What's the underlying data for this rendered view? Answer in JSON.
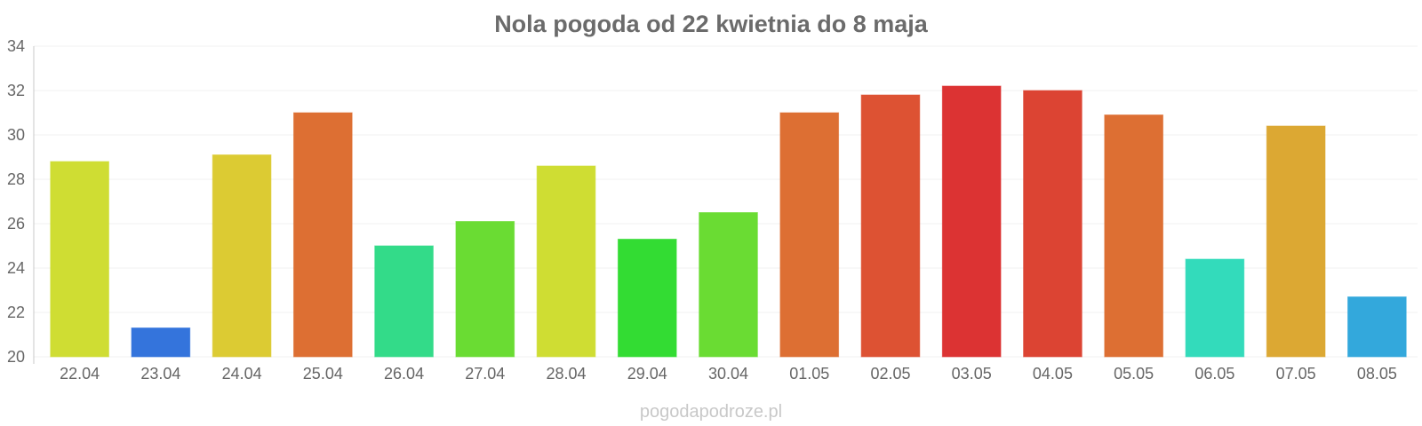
{
  "chart_data": {
    "type": "bar",
    "title": "Nola pogoda od 22 kwietnia do 8 maja",
    "xlabel": "",
    "ylabel": "",
    "ylim": [
      20,
      34
    ],
    "yticks": [
      20,
      22,
      24,
      26,
      28,
      30,
      32,
      34
    ],
    "grid": true,
    "categories": [
      "22.04",
      "23.04",
      "24.04",
      "25.04",
      "26.04",
      "27.04",
      "28.04",
      "29.04",
      "30.04",
      "01.05",
      "02.05",
      "03.05",
      "04.05",
      "05.05",
      "06.05",
      "07.05",
      "08.05"
    ],
    "values": [
      28.8,
      21.3,
      29.1,
      31.0,
      25.0,
      26.1,
      28.6,
      25.3,
      26.5,
      31.0,
      31.8,
      32.2,
      32.0,
      30.9,
      24.4,
      30.4,
      22.7
    ],
    "colors": [
      "#cfdd33",
      "#3474dc",
      "#dccb33",
      "#dd6f33",
      "#33db89",
      "#6adc33",
      "#cfdd33",
      "#33dc33",
      "#6adc33",
      "#dd6f33",
      "#dd5233",
      "#dc3333",
      "#dc4433",
      "#dd6f33",
      "#33dbbb",
      "#dca833",
      "#33a8dc"
    ]
  },
  "watermark": "pogodapodroze.pl"
}
